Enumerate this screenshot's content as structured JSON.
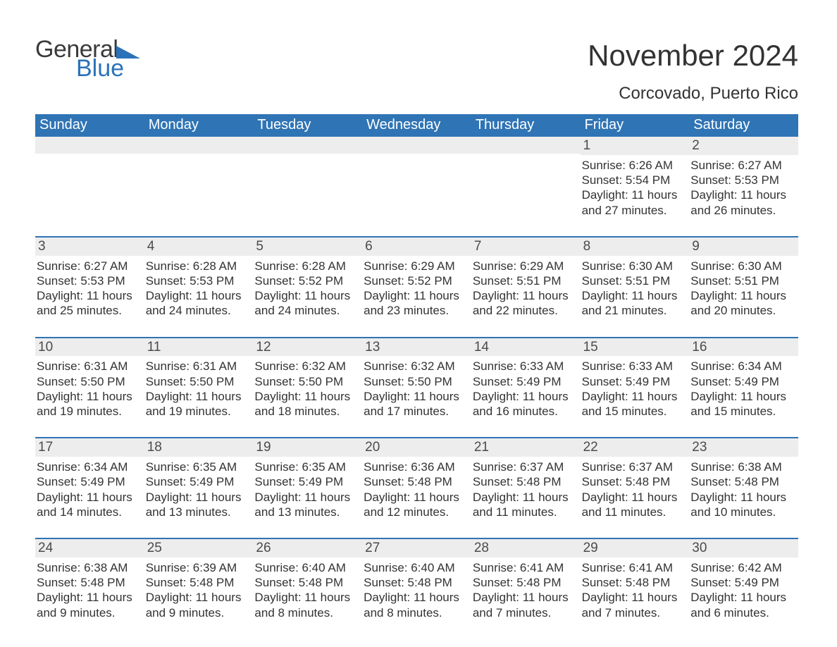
{
  "brand": {
    "word1": "General",
    "word2": "Blue",
    "accent_color": "#2b72b9"
  },
  "title": "November 2024",
  "location": "Corcovado, Puerto Rico",
  "colors": {
    "header_bg": "#2f74b5",
    "header_text": "#ffffff",
    "daynum_bg": "#ededed",
    "text": "#333333",
    "rule": "#2f74b5",
    "background": "#ffffff"
  },
  "typography": {
    "title_fontsize_pt": 32,
    "location_fontsize_pt": 18,
    "dow_fontsize_pt": 15,
    "body_fontsize_pt": 13,
    "daynum_fontsize_pt": 14,
    "font_family": "Arial"
  },
  "layout": {
    "first_day_of_week_index": 5,
    "weeks": 5,
    "columns": 7
  },
  "days_of_week": [
    "Sunday",
    "Monday",
    "Tuesday",
    "Wednesday",
    "Thursday",
    "Friday",
    "Saturday"
  ],
  "days": [
    {
      "n": 1,
      "sunrise": "6:26 AM",
      "sunset": "5:54 PM",
      "daylight": "11 hours and 27 minutes."
    },
    {
      "n": 2,
      "sunrise": "6:27 AM",
      "sunset": "5:53 PM",
      "daylight": "11 hours and 26 minutes."
    },
    {
      "n": 3,
      "sunrise": "6:27 AM",
      "sunset": "5:53 PM",
      "daylight": "11 hours and 25 minutes."
    },
    {
      "n": 4,
      "sunrise": "6:28 AM",
      "sunset": "5:53 PM",
      "daylight": "11 hours and 24 minutes."
    },
    {
      "n": 5,
      "sunrise": "6:28 AM",
      "sunset": "5:52 PM",
      "daylight": "11 hours and 24 minutes."
    },
    {
      "n": 6,
      "sunrise": "6:29 AM",
      "sunset": "5:52 PM",
      "daylight": "11 hours and 23 minutes."
    },
    {
      "n": 7,
      "sunrise": "6:29 AM",
      "sunset": "5:51 PM",
      "daylight": "11 hours and 22 minutes."
    },
    {
      "n": 8,
      "sunrise": "6:30 AM",
      "sunset": "5:51 PM",
      "daylight": "11 hours and 21 minutes."
    },
    {
      "n": 9,
      "sunrise": "6:30 AM",
      "sunset": "5:51 PM",
      "daylight": "11 hours and 20 minutes."
    },
    {
      "n": 10,
      "sunrise": "6:31 AM",
      "sunset": "5:50 PM",
      "daylight": "11 hours and 19 minutes."
    },
    {
      "n": 11,
      "sunrise": "6:31 AM",
      "sunset": "5:50 PM",
      "daylight": "11 hours and 19 minutes."
    },
    {
      "n": 12,
      "sunrise": "6:32 AM",
      "sunset": "5:50 PM",
      "daylight": "11 hours and 18 minutes."
    },
    {
      "n": 13,
      "sunrise": "6:32 AM",
      "sunset": "5:50 PM",
      "daylight": "11 hours and 17 minutes."
    },
    {
      "n": 14,
      "sunrise": "6:33 AM",
      "sunset": "5:49 PM",
      "daylight": "11 hours and 16 minutes."
    },
    {
      "n": 15,
      "sunrise": "6:33 AM",
      "sunset": "5:49 PM",
      "daylight": "11 hours and 15 minutes."
    },
    {
      "n": 16,
      "sunrise": "6:34 AM",
      "sunset": "5:49 PM",
      "daylight": "11 hours and 15 minutes."
    },
    {
      "n": 17,
      "sunrise": "6:34 AM",
      "sunset": "5:49 PM",
      "daylight": "11 hours and 14 minutes."
    },
    {
      "n": 18,
      "sunrise": "6:35 AM",
      "sunset": "5:49 PM",
      "daylight": "11 hours and 13 minutes."
    },
    {
      "n": 19,
      "sunrise": "6:35 AM",
      "sunset": "5:49 PM",
      "daylight": "11 hours and 13 minutes."
    },
    {
      "n": 20,
      "sunrise": "6:36 AM",
      "sunset": "5:48 PM",
      "daylight": "11 hours and 12 minutes."
    },
    {
      "n": 21,
      "sunrise": "6:37 AM",
      "sunset": "5:48 PM",
      "daylight": "11 hours and 11 minutes."
    },
    {
      "n": 22,
      "sunrise": "6:37 AM",
      "sunset": "5:48 PM",
      "daylight": "11 hours and 11 minutes."
    },
    {
      "n": 23,
      "sunrise": "6:38 AM",
      "sunset": "5:48 PM",
      "daylight": "11 hours and 10 minutes."
    },
    {
      "n": 24,
      "sunrise": "6:38 AM",
      "sunset": "5:48 PM",
      "daylight": "11 hours and 9 minutes."
    },
    {
      "n": 25,
      "sunrise": "6:39 AM",
      "sunset": "5:48 PM",
      "daylight": "11 hours and 9 minutes."
    },
    {
      "n": 26,
      "sunrise": "6:40 AM",
      "sunset": "5:48 PM",
      "daylight": "11 hours and 8 minutes."
    },
    {
      "n": 27,
      "sunrise": "6:40 AM",
      "sunset": "5:48 PM",
      "daylight": "11 hours and 8 minutes."
    },
    {
      "n": 28,
      "sunrise": "6:41 AM",
      "sunset": "5:48 PM",
      "daylight": "11 hours and 7 minutes."
    },
    {
      "n": 29,
      "sunrise": "6:41 AM",
      "sunset": "5:48 PM",
      "daylight": "11 hours and 7 minutes."
    },
    {
      "n": 30,
      "sunrise": "6:42 AM",
      "sunset": "5:49 PM",
      "daylight": "11 hours and 6 minutes."
    }
  ],
  "labels": {
    "sunrise_prefix": "Sunrise: ",
    "sunset_prefix": "Sunset: ",
    "daylight_prefix": "Daylight: "
  }
}
